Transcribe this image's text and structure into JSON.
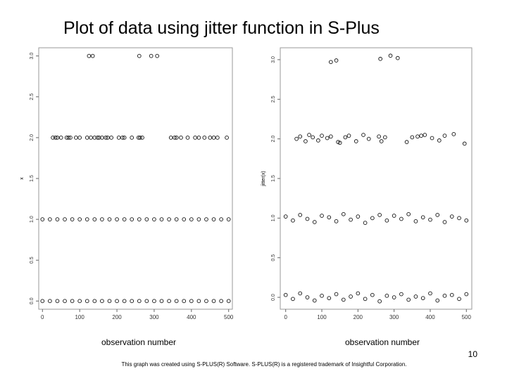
{
  "title": "Plot of data using jitter function in S-Plus",
  "page_number": "10",
  "footnote": "This graph was created using S-PLUS(R) Software. S-PLUS(R) is a registered trademark of Insightful Corporation.",
  "chart_data": [
    {
      "type": "scatter",
      "xlabel": "observation number",
      "ylabel": "x",
      "x": [
        125,
        135,
        260,
        292,
        308,
        28,
        35,
        40,
        50,
        65,
        70,
        75,
        90,
        100,
        120,
        130,
        140,
        148,
        152,
        160,
        170,
        175,
        185,
        205,
        215,
        220,
        240,
        258,
        262,
        268,
        345,
        355,
        360,
        372,
        390,
        410,
        420,
        435,
        450,
        460,
        470,
        495,
        0,
        20,
        40,
        60,
        80,
        100,
        120,
        140,
        160,
        180,
        200,
        220,
        240,
        260,
        280,
        300,
        320,
        340,
        360,
        380,
        400,
        420,
        440,
        460,
        480,
        500,
        0,
        20,
        40,
        60,
        80,
        100,
        120,
        140,
        160,
        180,
        200,
        220,
        240,
        260,
        280,
        300,
        320,
        340,
        360,
        380,
        400,
        420,
        440,
        460,
        480,
        500
      ],
      "y": [
        3,
        3,
        3,
        3,
        3,
        2,
        2,
        2,
        2,
        2,
        2,
        2,
        2,
        2,
        2,
        2,
        2,
        2,
        2,
        2,
        2,
        2,
        2,
        2,
        2,
        2,
        2,
        2,
        2,
        2,
        2,
        2,
        2,
        2,
        2,
        2,
        2,
        2,
        2,
        2,
        2,
        2,
        1,
        1,
        1,
        1,
        1,
        1,
        1,
        1,
        1,
        1,
        1,
        1,
        1,
        1,
        1,
        1,
        1,
        1,
        1,
        1,
        1,
        1,
        1,
        1,
        1,
        1,
        0,
        0,
        0,
        0,
        0,
        0,
        0,
        0,
        0,
        0,
        0,
        0,
        0,
        0,
        0,
        0,
        0,
        0,
        0,
        0,
        0,
        0,
        0,
        0,
        0,
        0
      ],
      "xlim": [
        -10,
        510
      ],
      "ylim": [
        -0.1,
        3.1
      ],
      "xticks": [
        0,
        100,
        200,
        300,
        400,
        500
      ],
      "yticks": [
        {
          "value": 0,
          "label": "0.0"
        },
        0.5,
        {
          "value": 1,
          "label": "1.0"
        },
        1.5,
        {
          "value": 2,
          "label": "2.0"
        },
        2.5,
        {
          "value": 3,
          "label": "3.0"
        }
      ]
    },
    {
      "type": "scatter",
      "xlabel": "observation number",
      "ylabel": "jitter(x)",
      "x": [
        125,
        140,
        262,
        290,
        310,
        30,
        40,
        55,
        65,
        75,
        90,
        100,
        115,
        125,
        145,
        150,
        165,
        175,
        195,
        215,
        230,
        258,
        265,
        275,
        335,
        350,
        365,
        375,
        385,
        405,
        425,
        440,
        465,
        495,
        0,
        20,
        40,
        60,
        80,
        100,
        120,
        140,
        160,
        180,
        200,
        220,
        240,
        260,
        280,
        300,
        320,
        340,
        360,
        380,
        400,
        420,
        440,
        460,
        480,
        500,
        0,
        20,
        40,
        60,
        80,
        100,
        120,
        140,
        160,
        180,
        200,
        220,
        240,
        260,
        280,
        300,
        320,
        340,
        360,
        380,
        400,
        420,
        440,
        460,
        480,
        500
      ],
      "y": [
        2.97,
        2.99,
        3.01,
        3.05,
        3.02,
        2.0,
        2.03,
        1.97,
        2.05,
        2.02,
        1.98,
        2.04,
        2.01,
        2.03,
        1.96,
        1.95,
        2.02,
        2.04,
        1.97,
        2.05,
        2.0,
        2.03,
        1.97,
        2.02,
        1.96,
        2.02,
        2.03,
        2.04,
        2.05,
        2.01,
        1.98,
        2.04,
        2.06,
        1.94,
        1.02,
        0.97,
        1.04,
        0.99,
        0.95,
        1.03,
        1.01,
        0.96,
        1.05,
        0.98,
        1.02,
        0.94,
        1.0,
        1.04,
        0.97,
        1.03,
        0.99,
        1.05,
        0.96,
        1.01,
        0.98,
        1.04,
        0.95,
        1.02,
        1.0,
        0.97,
        0.03,
        -0.02,
        0.05,
        0.0,
        -0.04,
        0.02,
        -0.01,
        0.04,
        -0.03,
        0.01,
        0.05,
        -0.02,
        0.03,
        -0.05,
        0.02,
        0.0,
        0.04,
        -0.03,
        0.01,
        -0.01,
        0.05,
        -0.04,
        0.02,
        0.03,
        -0.02,
        0.04
      ],
      "xlim": [
        -15,
        515
      ],
      "ylim": [
        -0.15,
        3.15
      ],
      "xticks": [
        0,
        100,
        200,
        300,
        400,
        500
      ],
      "yticks": [
        {
          "value": 0,
          "label": "0.0"
        },
        0.5,
        {
          "value": 1,
          "label": "1.0"
        },
        1.5,
        {
          "value": 2,
          "label": "2.0"
        },
        2.5,
        {
          "value": 3,
          "label": "3.0"
        }
      ]
    }
  ]
}
